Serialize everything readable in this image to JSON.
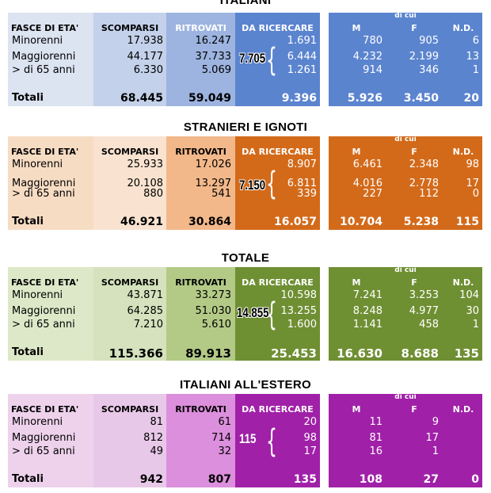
{
  "headers": {
    "fasce": "FASCE DI ETA'",
    "scomparsi": "SCOMPARSI",
    "ritrovati": "RITROVATI",
    "da_ricercare": "DA RICERCARE",
    "di_cui": "di cui",
    "m": "M",
    "f": "F",
    "nd": "N.D."
  },
  "row_labels": {
    "minorenni": "Minorenni",
    "maggiorenni": "Maggiorenni",
    "over65": "> di 65 anni",
    "totali": "Totali"
  },
  "sections": [
    {
      "title": "ITALIANI",
      "colors": {
        "label": "#dce3f1",
        "scomparsi": "#c3d1ea",
        "ritrovati": "#9db4e0",
        "ricercare": "#5b84cf",
        "right": "#5b84cf"
      },
      "rows": [
        {
          "scomparsi": "17.938",
          "ritrovati": "16.247",
          "ricercare": "1.691",
          "m": "780",
          "f": "905",
          "nd": "6"
        },
        {
          "scomparsi": "44.177",
          "ritrovati": "37.733",
          "ricercare": "6.444",
          "m": "4.232",
          "f": "2.199",
          "nd": "13"
        },
        {
          "scomparsi": "6.330",
          "ritrovati": "5.069",
          "ricercare": "1.261",
          "m": "914",
          "f": "346",
          "nd": "1"
        }
      ],
      "totals": {
        "scomparsi": "68.445",
        "ritrovati": "59.049",
        "ricercare": "9.396",
        "m": "5.926",
        "f": "3.450",
        "nd": "20"
      },
      "bracket_value": "7.705"
    },
    {
      "title": "STRANIERI E IGNOTI",
      "colors": {
        "label": "#f7dcc4",
        "scomparsi": "#f9e3d0",
        "ritrovati": "#f2b88a",
        "ricercare": "#d36a1a",
        "right": "#d36a1a"
      },
      "rows": [
        {
          "scomparsi": "25.933",
          "ritrovati": "17.026",
          "ricercare": "8.907",
          "m": "6.461",
          "f": "2.348",
          "nd": "98"
        },
        {
          "scomparsi": "20.108",
          "ritrovati": "13.297",
          "ricercare": "6.811",
          "m": "4.016",
          "f": "2.778",
          "nd": "17"
        },
        {
          "scomparsi": "880",
          "ritrovati": "541",
          "ricercare": "339",
          "m": "227",
          "f": "112",
          "nd": "0"
        }
      ],
      "totals": {
        "scomparsi": "46.921",
        "ritrovati": "30.864",
        "ricercare": "16.057",
        "m": "10.704",
        "f": "5.238",
        "nd": "115"
      },
      "bracket_value": "7.150"
    },
    {
      "title": "TOTALE",
      "colors": {
        "label": "#dde8c8",
        "scomparsi": "#d5e2bd",
        "ritrovati": "#b3ca86",
        "ricercare": "#6f8f33",
        "right": "#6f8f33"
      },
      "rows": [
        {
          "scomparsi": "43.871",
          "ritrovati": "33.273",
          "ricercare": "10.598",
          "m": "7.241",
          "f": "3.253",
          "nd": "104"
        },
        {
          "scomparsi": "64.285",
          "ritrovati": "51.030",
          "ricercare": "13.255",
          "m": "8.248",
          "f": "4.977",
          "nd": "30"
        },
        {
          "scomparsi": "7.210",
          "ritrovati": "5.610",
          "ricercare": "1.600",
          "m": "1.141",
          "f": "458",
          "nd": "1"
        }
      ],
      "totals": {
        "scomparsi": "115.366",
        "ritrovati": "89.913",
        "ricercare": "25.453",
        "m": "16.630",
        "f": "8.688",
        "nd": "135"
      },
      "bracket_value": "14.855"
    },
    {
      "title": "ITALIANI ALL'ESTERO",
      "colors": {
        "label": "#eed2ec",
        "scomparsi": "#e8c8e8",
        "ritrovati": "#dc8fdc",
        "ricercare": "#a020a8",
        "right": "#a020a8"
      },
      "rows": [
        {
          "scomparsi": "81",
          "ritrovati": "61",
          "ricercare": "20",
          "m": "11",
          "f": "9",
          "nd": ""
        },
        {
          "scomparsi": "812",
          "ritrovati": "714",
          "ricercare": "98",
          "m": "81",
          "f": "17",
          "nd": ""
        },
        {
          "scomparsi": "49",
          "ritrovati": "32",
          "ricercare": "17",
          "m": "16",
          "f": "1",
          "nd": ""
        }
      ],
      "totals": {
        "scomparsi": "942",
        "ritrovati": "807",
        "ricercare": "135",
        "m": "108",
        "f": "27",
        "nd": "0"
      },
      "bracket_value": "115"
    }
  ]
}
